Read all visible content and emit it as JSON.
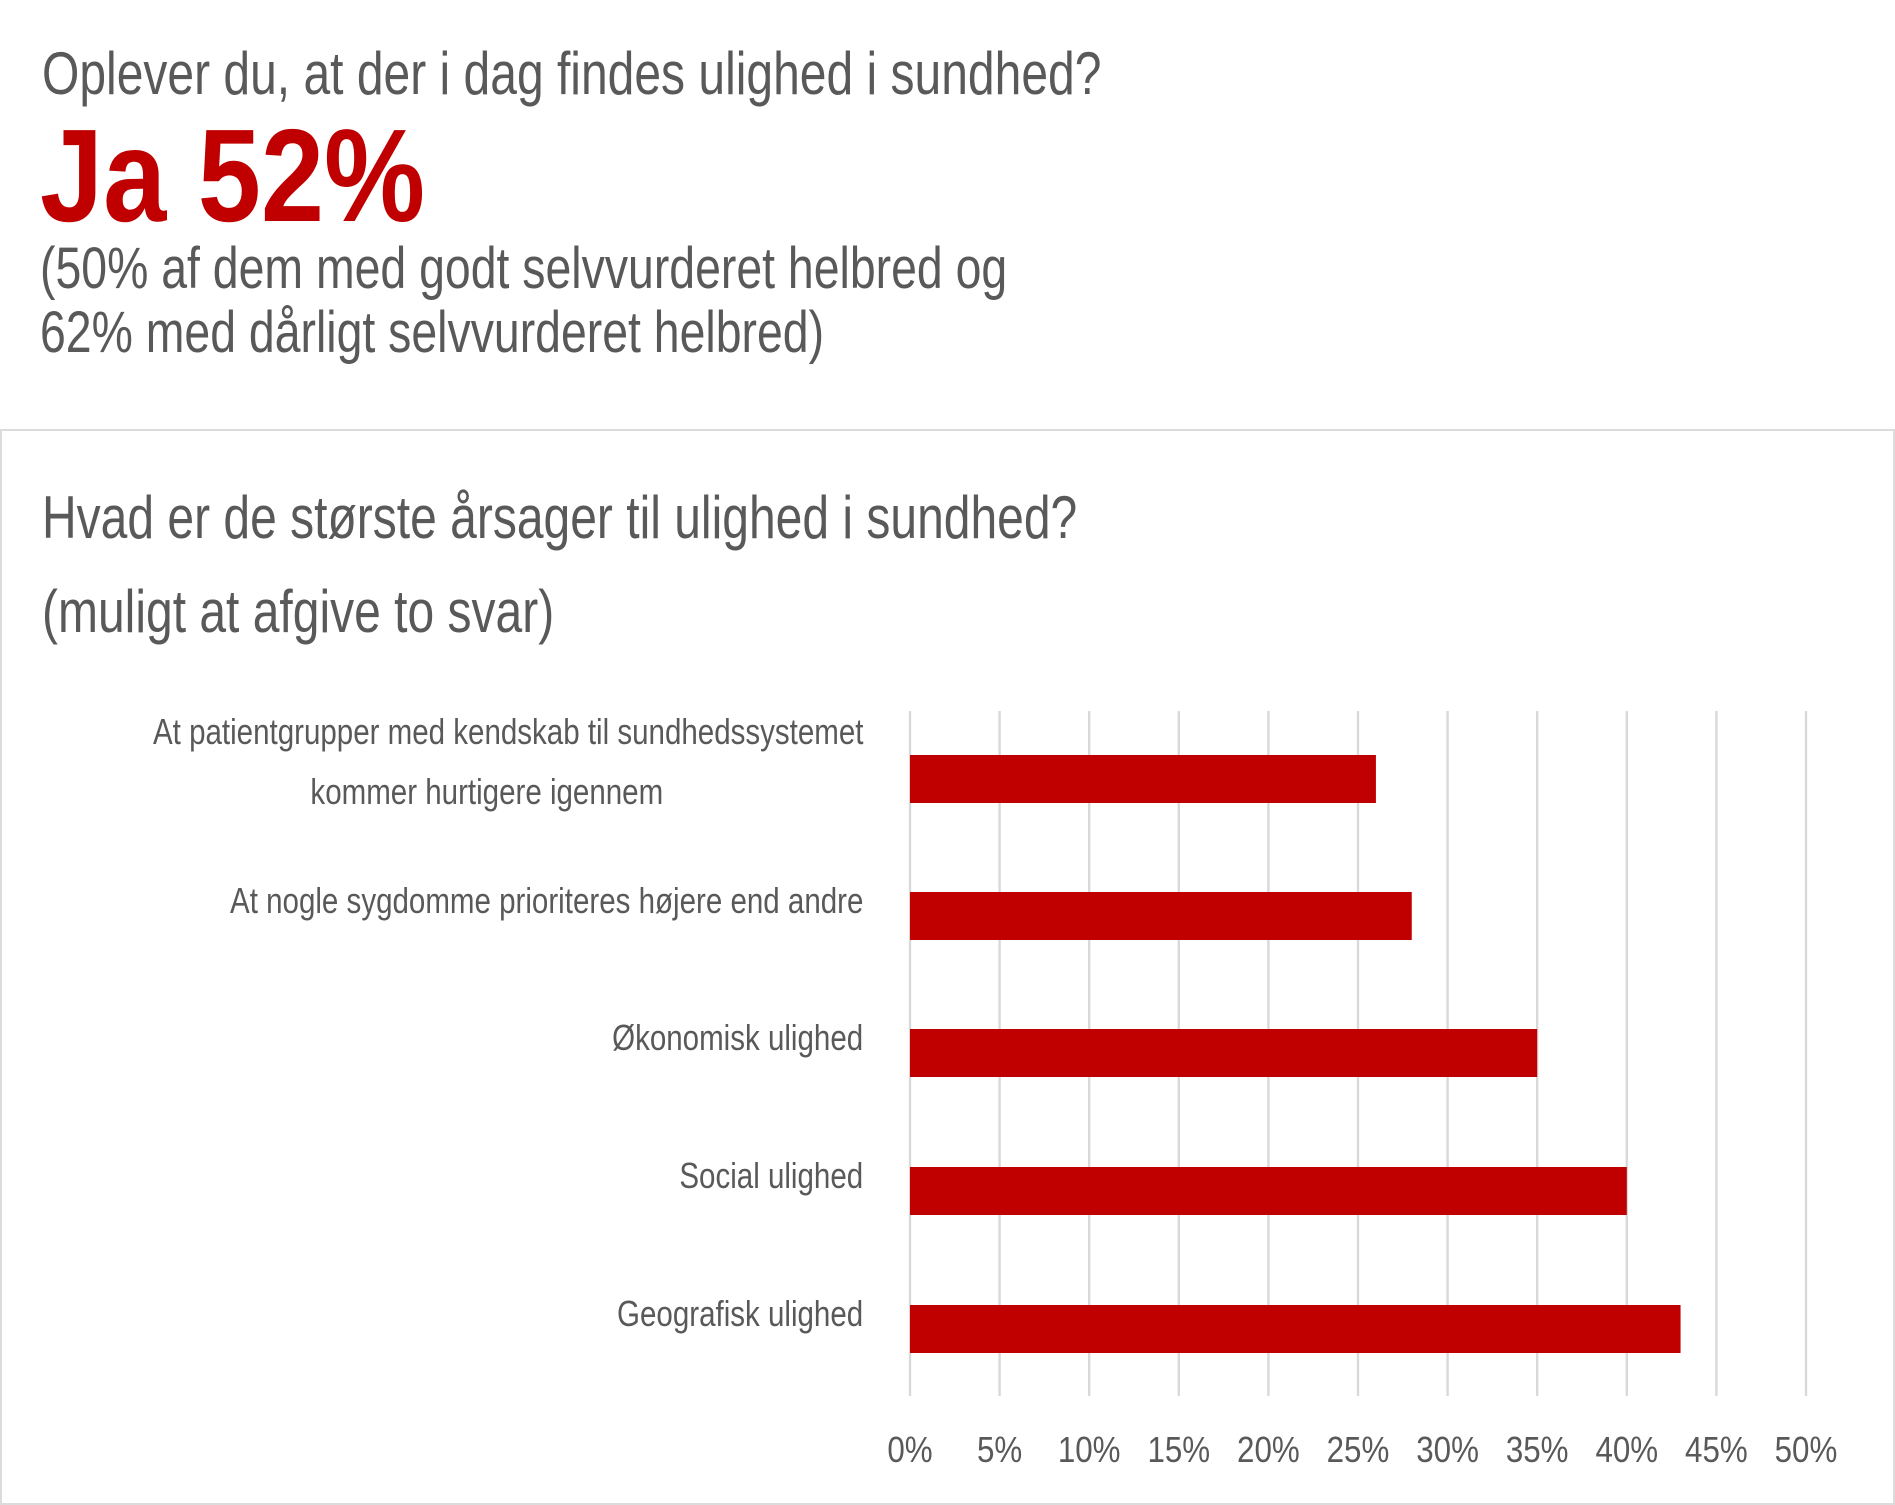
{
  "header": {
    "question": "Oplever du, at der i dag findes ulighed i sundhed?",
    "answer": "Ja 52%",
    "detail_line1": "(50% af dem med godt selvvurderet helbred og",
    "detail_line2": "62% med dårligt selvvurderet helbred)"
  },
  "chart_data": {
    "type": "bar",
    "orientation": "horizontal",
    "title_line1": "Hvad er de største årsager til ulighed i sundhed?",
    "title_line2": "(muligt at afgive to svar)",
    "categories": [
      "At patientgrupper med kendskab til sundhedssystemet kommer hurtigere igennem",
      "At nogle sygdomme prioriteres højere end andre",
      "Økonomisk ulighed",
      "Social ulighed",
      "Geografisk ulighed"
    ],
    "category_label_lines": [
      [
        "At patientgrupper med kendskab til sundhedssystemet",
        "kommer hurtigere igennem"
      ],
      [
        "At nogle sygdomme prioriteres højere end andre"
      ],
      [
        "Økonomisk ulighed"
      ],
      [
        "Social ulighed"
      ],
      [
        "Geografisk ulighed"
      ]
    ],
    "values": [
      26,
      28,
      35,
      40,
      43
    ],
    "xlim": [
      0,
      50
    ],
    "ticks": [
      "0%",
      "5%",
      "10%",
      "15%",
      "20%",
      "25%",
      "30%",
      "35%",
      "40%",
      "45%",
      "50%"
    ],
    "grid": "vertical",
    "bar_color": "#c00000",
    "grid_color": "#d9d9d9"
  }
}
